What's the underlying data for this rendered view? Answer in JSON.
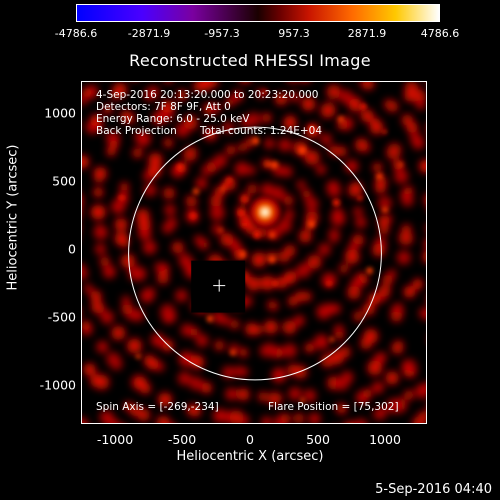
{
  "colorbar": {
    "ticks": [
      "-4786.6",
      "-2871.9",
      "-957.3",
      "957.3",
      "2871.9",
      "4786.6"
    ]
  },
  "title": "Reconstructed RHESSI Image",
  "info": {
    "time_range": "4-Sep-2016 20:13:20.000 to 20:23:20.000",
    "detectors": "Detectors: 7F 8F 9F, Att 0",
    "energy": "Energy Range: 6.0 - 25.0 keV",
    "method": "Back Projection",
    "counts": "Total counts: 1.24E+04",
    "spin_axis": "Spin Axis = [-269,-234]",
    "flare_position": "Flare Position = [75,302]"
  },
  "axes": {
    "ylabel": "Heliocentric Y (arcsec)",
    "xlabel": "Heliocentric X (arcsec)",
    "yticks": [
      "1000",
      "500",
      "0",
      "-500",
      "-1000"
    ],
    "xticks": [
      "-1000",
      "-500",
      "0",
      "500",
      "1000"
    ],
    "xlim": [
      -1300,
      1300
    ],
    "ylim": [
      -1250,
      1250
    ]
  },
  "image": {
    "peak_x": 75,
    "peak_y": 302,
    "spin_axis_x": -269,
    "spin_axis_y": -234,
    "solar_radius_arcsec": 950
  },
  "datestamp": "5-Sep-2016 04:40"
}
